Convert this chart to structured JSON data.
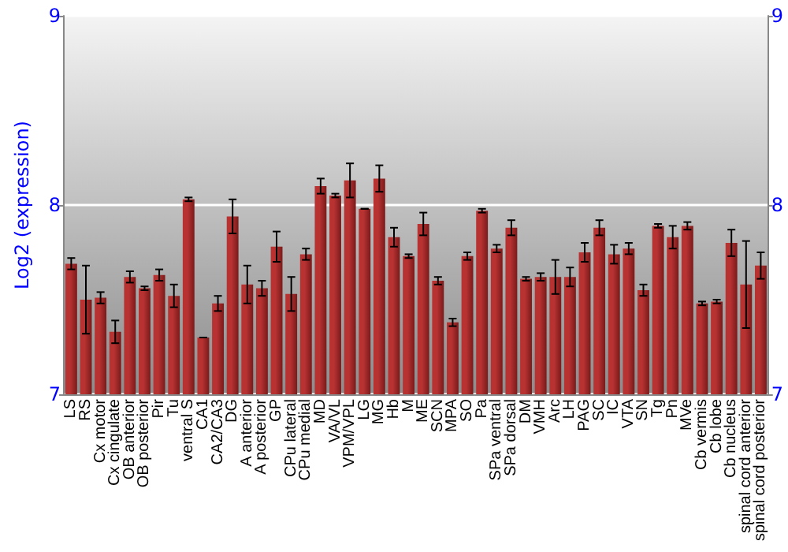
{
  "chart_data": {
    "type": "bar",
    "ylabel": "Log2 (expression)",
    "categories": [
      "LS",
      "RS",
      "Cx motor",
      "Cx cingulate",
      "OB anterior",
      "OB posterior",
      "Pir",
      "Tu",
      "ventral S",
      "CA1",
      "CA2/CA3",
      "DG",
      "A anterior",
      "A posterior",
      "GP",
      "CPu lateral",
      "CPu medial",
      "MD",
      "VA/VL",
      "VPM/VPL",
      "LG",
      "MG",
      "Hb",
      "M",
      "ME",
      "SCN",
      "MPA",
      "SO",
      "Pa",
      "SPa ventral",
      "SPa dorsal",
      "DM",
      "VMH",
      "Arc",
      "LH",
      "PAG",
      "SC",
      "IC",
      "VTA",
      "SN",
      "Tg",
      "Pn",
      "MVe",
      "Cb vermis",
      "Cb lobe",
      "Cb nucleus",
      "spinal cord anterior",
      "spinal cord posterior"
    ],
    "series": [
      {
        "color": "#b83232",
        "values": [
          7.69,
          7.5,
          7.51,
          7.33,
          7.62,
          7.56,
          7.63,
          7.52,
          8.03,
          7.3,
          7.48,
          7.94,
          7.58,
          7.56,
          7.78,
          7.53,
          7.74,
          8.1,
          8.05,
          8.13,
          7.98,
          8.14,
          7.83,
          7.73,
          7.9,
          7.6,
          7.38,
          7.73,
          7.97,
          7.77,
          7.88,
          7.61,
          7.62,
          7.62,
          7.62,
          7.75,
          7.88,
          7.74,
          7.77,
          7.55,
          7.89,
          7.83,
          7.89,
          7.48,
          7.49,
          7.8,
          7.58,
          7.68
        ],
        "errors": [
          0.03,
          0.18,
          0.03,
          0.06,
          0.03,
          0.01,
          0.03,
          0.06,
          0.01,
          0,
          0.04,
          0.09,
          0.1,
          0.04,
          0.08,
          0.09,
          0.03,
          0.04,
          0.01,
          0.09,
          0,
          0.07,
          0.05,
          0.01,
          0.06,
          0.02,
          0.02,
          0.02,
          0.01,
          0.02,
          0.04,
          0.01,
          0.02,
          0.09,
          0.05,
          0.05,
          0.04,
          0.05,
          0.03,
          0.03,
          0.01,
          0.06,
          0.02,
          0.01,
          0.01,
          0.07,
          0.23,
          0.07
        ]
      }
    ],
    "ylim": [
      7,
      9
    ],
    "yticks": [
      7,
      8,
      9
    ],
    "y2lim": [
      7,
      9
    ],
    "y2ticks": [
      7,
      8,
      9
    ],
    "grid": "y"
  }
}
